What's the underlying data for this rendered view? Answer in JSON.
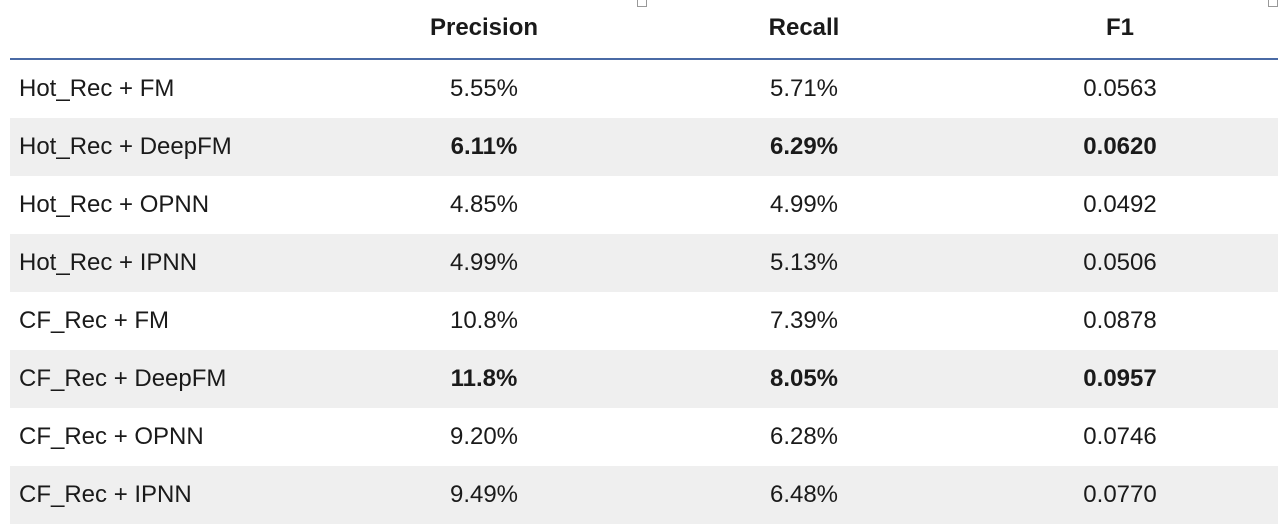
{
  "table": {
    "headers": [
      "",
      "Precision",
      "Recall",
      "F1"
    ],
    "rows": [
      {
        "name": "Hot_Rec + FM",
        "precision": "5.55%",
        "recall": "5.71%",
        "f1": "0.0563",
        "bold": false,
        "shaded": false
      },
      {
        "name": "Hot_Rec + DeepFM",
        "precision": "6.11%",
        "recall": "6.29%",
        "f1": "0.0620",
        "bold": true,
        "shaded": true
      },
      {
        "name": "Hot_Rec + OPNN",
        "precision": "4.85%",
        "recall": "4.99%",
        "f1": "0.0492",
        "bold": false,
        "shaded": false
      },
      {
        "name": "Hot_Rec + IPNN",
        "precision": "4.99%",
        "recall": "5.13%",
        "f1": "0.0506",
        "bold": false,
        "shaded": true
      },
      {
        "name": "CF_Rec + FM",
        "precision": "10.8%",
        "recall": "7.39%",
        "f1": "0.0878",
        "bold": false,
        "shaded": false
      },
      {
        "name": "CF_Rec + DeepFM",
        "precision": "11.8%",
        "recall": "8.05%",
        "f1": "0.0957",
        "bold": true,
        "shaded": true
      },
      {
        "name": "CF_Rec + OPNN",
        "precision": "9.20%",
        "recall": "6.28%",
        "f1": "0.0746",
        "bold": false,
        "shaded": false
      },
      {
        "name": "CF_Rec + IPNN",
        "precision": "9.49%",
        "recall": "6.48%",
        "f1": "0.0770",
        "bold": false,
        "shaded": true
      }
    ]
  },
  "colors": {
    "header_rule": "#4a6aa5",
    "shaded_row": "#efefef",
    "text": "#1a1a1a"
  }
}
